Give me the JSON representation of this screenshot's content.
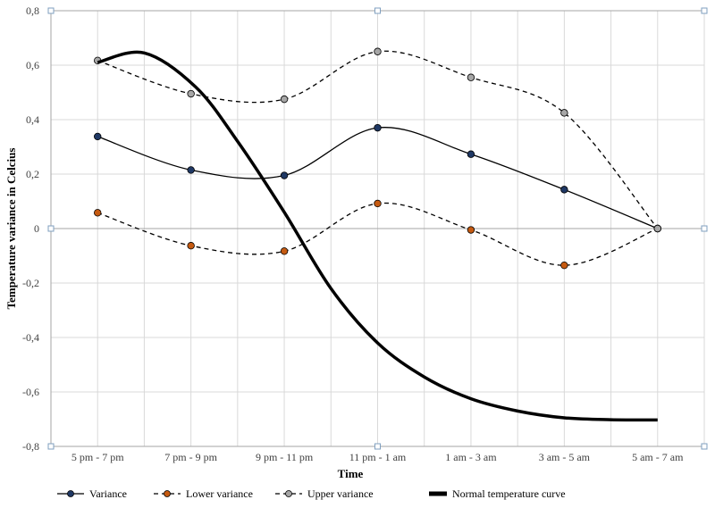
{
  "chart_data": {
    "type": "line",
    "title": "",
    "xlabel": "Time",
    "ylabel": "Temperature variance in  Celcius",
    "ylim": [
      -0.8,
      0.8
    ],
    "yticks": [
      "0,8",
      "0,6",
      "0,4",
      "0,2",
      "0",
      "-0,2",
      "-0,4",
      "-0,6",
      "-0,8"
    ],
    "ytick_values": [
      0.8,
      0.6,
      0.4,
      0.2,
      0,
      -0.2,
      -0.4,
      -0.6,
      -0.8
    ],
    "categories": [
      "5 pm - 7 pm",
      "7 pm - 9 pm",
      "9 pm - 11 pm",
      "11 pm - 1 am",
      "1 am - 3 am",
      "3 am - 5 am",
      "5 am - 7 am"
    ],
    "grid": true,
    "legend_position": "bottom",
    "series": [
      {
        "name": "Variance",
        "style": "solid-marker",
        "color": "#000000",
        "marker": "#1f3864",
        "values": [
          0.338,
          0.215,
          0.195,
          0.37,
          0.273,
          0.143,
          0.0
        ]
      },
      {
        "name": "Lower variance",
        "style": "dashed-marker",
        "color": "#000000",
        "marker": "#c55a11",
        "values": [
          0.058,
          -0.063,
          -0.083,
          0.092,
          -0.005,
          -0.135,
          0.0
        ]
      },
      {
        "name": "Upper variance",
        "style": "dashed-marker",
        "color": "#000000",
        "marker": "#a6a6a6",
        "values": [
          0.617,
          0.495,
          0.475,
          0.65,
          0.555,
          0.425,
          0.0
        ]
      },
      {
        "name": "Normal temperature curve",
        "style": "thick",
        "color": "#000000",
        "x": [
          0,
          0.5,
          1.05,
          1.5,
          2.0,
          2.5,
          3.0,
          3.5,
          4.0,
          4.5,
          5.0,
          5.5,
          6.0
        ],
        "values": [
          0.61,
          0.645,
          0.52,
          0.32,
          0.06,
          -0.22,
          -0.42,
          -0.545,
          -0.625,
          -0.67,
          -0.695,
          -0.702,
          -0.703
        ]
      }
    ]
  }
}
